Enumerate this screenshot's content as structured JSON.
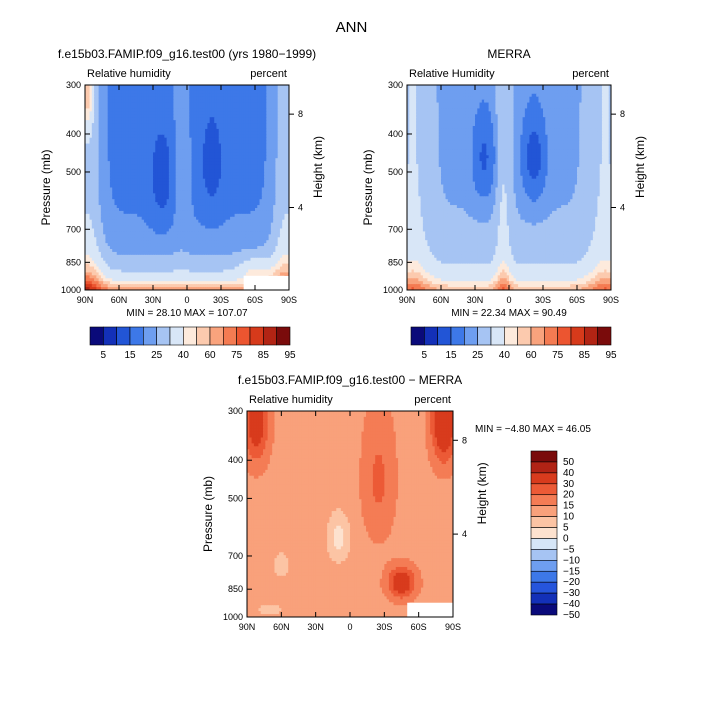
{
  "figure": {
    "title": "ANN"
  },
  "colors": {
    "rh_palette": [
      "#0a0a7a",
      "#1330b8",
      "#2255d6",
      "#3d78e8",
      "#6e9ef0",
      "#a6c4f3",
      "#d8e6f7",
      "#fdeadc",
      "#fccaae",
      "#f9a37d",
      "#f47b52",
      "#ec5530",
      "#d63a1b",
      "#b22414",
      "#7a0b0b"
    ],
    "diff_palette": [
      "#0a0a7a",
      "#1330b8",
      "#2655dc",
      "#3d78e8",
      "#6e9ef0",
      "#a6c4f3",
      "#d6e6f7",
      "#fde2cf",
      "#fcc4a4",
      "#f9a17b",
      "#f47c55",
      "#ec5a36",
      "#d83b1d",
      "#b12315",
      "#7a0b0b"
    ]
  },
  "chart_data": [
    {
      "type": "heatmap",
      "title": "f.e15b03.FAMIP.f09_g16.test00 (yrs 1980−1999)",
      "left_label": "Relative humidity",
      "right_label": "percent",
      "ylabel": "Pressure (mb)",
      "y2label": "Height (km)",
      "x_ticks": [
        "90N",
        "60N",
        "30N",
        "0",
        "30S",
        "60S",
        "90S"
      ],
      "y_ticks": [
        "300",
        "400",
        "500",
        "700",
        "850",
        "1000"
      ],
      "y2_ticks": [
        "8",
        "4"
      ],
      "x_range": [
        90,
        -90
      ],
      "y_range": [
        1000,
        300
      ],
      "y_scale": "log",
      "min_label": "MIN =",
      "min_value": "28.10",
      "max_label": "MAX =",
      "max_value": "107.07",
      "colorbar_levels": [
        "5",
        "15",
        "25",
        "40",
        "60",
        "75",
        "85",
        "95"
      ],
      "missing_region": {
        "lat": [
          -50,
          -90
        ],
        "p": [
          920,
          1000
        ]
      }
    },
    {
      "type": "heatmap",
      "title": "MERRA",
      "left_label": "Relative Humidity",
      "right_label": "percent",
      "ylabel": "Pressure (mb)",
      "y2label": "Height (km)",
      "x_ticks": [
        "90N",
        "60N",
        "30N",
        "0",
        "30S",
        "60S",
        "90S"
      ],
      "y_ticks": [
        "300",
        "400",
        "500",
        "700",
        "850",
        "1000"
      ],
      "y2_ticks": [
        "8",
        "4"
      ],
      "x_range": [
        90,
        -90
      ],
      "y_range": [
        1000,
        300
      ],
      "y_scale": "log",
      "min_label": "MIN =",
      "min_value": "22.34",
      "max_label": "MAX =",
      "max_value": "90.49",
      "colorbar_levels": [
        "5",
        "15",
        "25",
        "40",
        "60",
        "75",
        "85",
        "95"
      ]
    },
    {
      "type": "heatmap",
      "title": "f.e15b03.FAMIP.f09_g16.test00 − MERRA",
      "left_label": "Relative humidity",
      "right_label": "percent",
      "ylabel": "Pressure (mb)",
      "y2label": "Height (km)",
      "x_ticks": [
        "90N",
        "60N",
        "30N",
        "0",
        "30S",
        "60S",
        "90S"
      ],
      "y_ticks": [
        "300",
        "400",
        "500",
        "700",
        "850",
        "1000"
      ],
      "y2_ticks": [
        "8",
        "4"
      ],
      "x_range": [
        90,
        -90
      ],
      "y_range": [
        1000,
        300
      ],
      "y_scale": "log",
      "min_label": "MIN =",
      "min_value": "−4.80",
      "max_label": "MAX =",
      "max_value": "46.05",
      "colorbar_levels": [
        "50",
        "40",
        "30",
        "20",
        "15",
        "10",
        "5",
        "0",
        "−5",
        "−10",
        "−15",
        "−20",
        "−30",
        "−40",
        "−50"
      ],
      "missing_region": {
        "lat": [
          -50,
          -90
        ],
        "p": [
          920,
          1000
        ]
      }
    }
  ]
}
